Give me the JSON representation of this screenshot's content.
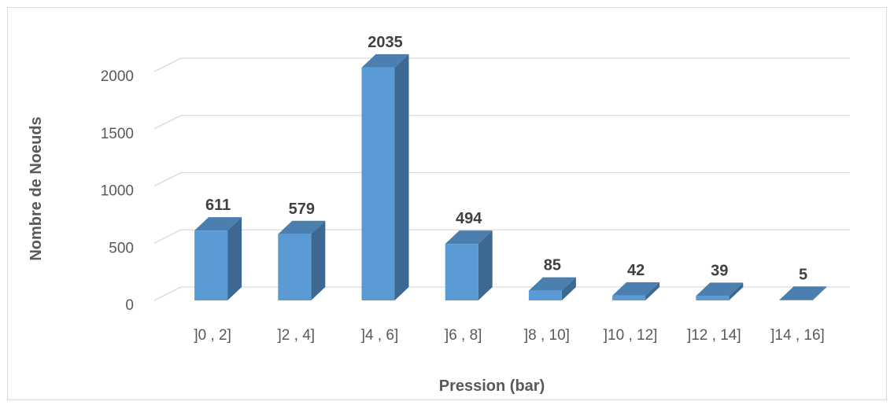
{
  "chart_data": {
    "type": "bar",
    "categories": [
      "]0 , 2]",
      "]2 , 4]",
      "]4 , 6]",
      "]6 , 8]",
      "]8 , 10]",
      "]10 , 12]",
      "]12 , 14]",
      "]14 , 16]"
    ],
    "values": [
      611,
      579,
      2035,
      494,
      85,
      42,
      39,
      5
    ],
    "data_labels": [
      "611",
      "579",
      "2035",
      "494",
      "85",
      "42",
      "39",
      "5"
    ],
    "title": "",
    "xlabel": "Pression (bar)",
    "ylabel": "Nombre de Noeuds",
    "ylim": [
      0,
      2000
    ],
    "yticks": [
      0,
      500,
      1000,
      1500,
      2000
    ],
    "ytick_labels": [
      "0",
      "500",
      "1000",
      "1500",
      "2000"
    ],
    "grid": true,
    "legend": "none",
    "style": "3d-column",
    "colors": {
      "bar_front": "#5b9bd5",
      "bar_side": "#3d6891",
      "bar_top": "#4a7fb0",
      "gridline": "#d9d9d9",
      "tick_text": "#595959",
      "label_text": "#404040"
    }
  }
}
